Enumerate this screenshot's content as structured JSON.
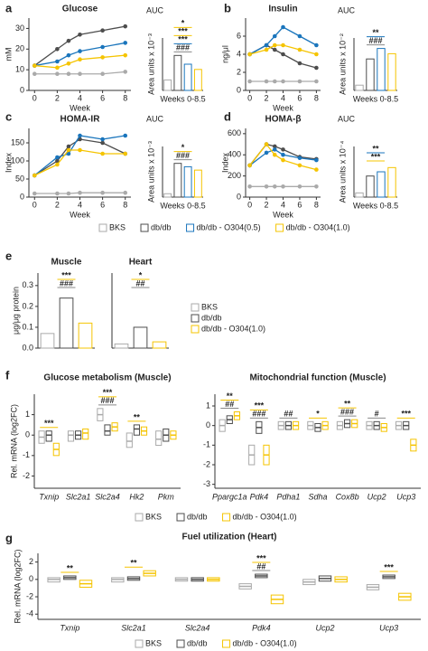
{
  "chart_data": [
    {
      "type": "line",
      "label": "a",
      "title": "Glucose",
      "ylabel": "mM",
      "xlabel": "Week",
      "x": [
        0,
        2,
        3,
        4,
        6,
        8
      ],
      "xlim": [
        -0.5,
        8.5
      ],
      "xticks": [
        0,
        2,
        4,
        6,
        8
      ],
      "ylim": [
        0,
        35
      ],
      "yticks": [
        0,
        10,
        20,
        30
      ],
      "legend": "bottom",
      "series": [
        {
          "name": "BKS",
          "color": "#aaaaaa",
          "values": [
            8,
            8,
            8,
            8,
            8,
            9
          ]
        },
        {
          "name": "db/db",
          "color": "#4d4d4d",
          "values": [
            12,
            20,
            24,
            27,
            29,
            31
          ]
        },
        {
          "name": "db/db - O304(0.5)",
          "color": "#1a75bc",
          "values": [
            12,
            14,
            17,
            19,
            21,
            23
          ]
        },
        {
          "name": "db/db - O304(1.0)",
          "color": "#f5c400",
          "values": [
            12,
            11,
            13,
            15,
            16,
            17
          ]
        }
      ]
    },
    {
      "type": "auc",
      "title": "AUC",
      "ylabel": "Area units x 10⁻³",
      "xlabel": "Weeks 0-8.5",
      "ylim": [
        0,
        0.3
      ],
      "values": [
        0.06,
        0.2,
        0.15,
        0.12
      ],
      "colors": [
        "#aaaaaa",
        "#4d4d4d",
        "#1a75bc",
        "#f5c400"
      ],
      "annotations": [
        {
          "text": "###",
          "color": "#888888"
        },
        {
          "text": "***",
          "color": "#1a75bc"
        },
        {
          "text": "***",
          "color": "#f5c400"
        },
        {
          "text": "*",
          "color": "#f5c400"
        }
      ]
    },
    {
      "type": "line",
      "label": "b",
      "title": "Insulin",
      "ylabel": "ng/μl",
      "xlabel": "Week",
      "x": [
        0,
        2,
        3,
        4,
        6,
        8
      ],
      "xlim": [
        -0.5,
        8.5
      ],
      "xticks": [
        0,
        2,
        4,
        6,
        8
      ],
      "ylim": [
        0,
        8
      ],
      "yticks": [
        0,
        2,
        4,
        6
      ],
      "series": [
        {
          "color": "#aaaaaa",
          "values": [
            1,
            1,
            1,
            1,
            1,
            1
          ]
        },
        {
          "color": "#4d4d4d",
          "values": [
            4,
            5,
            4.5,
            4,
            3,
            2.5
          ]
        },
        {
          "color": "#1a75bc",
          "values": [
            4,
            5,
            6,
            7,
            6,
            5
          ]
        },
        {
          "color": "#f5c400",
          "values": [
            4,
            4.5,
            5,
            5,
            4.5,
            4
          ]
        }
      ]
    },
    {
      "type": "auc",
      "title": "AUC",
      "ylabel": "Area units x 10⁻²",
      "xlabel": "Weeks 0-8.5",
      "ylim": [
        0,
        0.5
      ],
      "values": [
        0.05,
        0.3,
        0.4,
        0.35
      ],
      "colors": [
        "#aaaaaa",
        "#4d4d4d",
        "#1a75bc",
        "#f5c400"
      ],
      "annotations": [
        {
          "text": "###",
          "color": "#888888"
        },
        {
          "text": "**",
          "color": "#1a75bc"
        }
      ]
    },
    {
      "type": "line",
      "label": "c",
      "title": "HOMA-IR",
      "ylabel": "Index",
      "xlabel": "Week",
      "x": [
        0,
        2,
        3,
        4,
        6,
        8
      ],
      "xlim": [
        -0.5,
        8.5
      ],
      "xticks": [
        0,
        2,
        4,
        6,
        8
      ],
      "ylim": [
        0,
        190
      ],
      "yticks": [
        0,
        50,
        100,
        150
      ],
      "series": [
        {
          "color": "#aaaaaa",
          "values": [
            10,
            10,
            10,
            12,
            12,
            12
          ]
        },
        {
          "color": "#4d4d4d",
          "values": [
            60,
            100,
            140,
            160,
            150,
            120
          ]
        },
        {
          "color": "#1a75bc",
          "values": [
            60,
            110,
            120,
            170,
            160,
            170
          ]
        },
        {
          "color": "#f5c400",
          "values": [
            60,
            90,
            130,
            130,
            120,
            120
          ]
        }
      ]
    },
    {
      "type": "auc",
      "title": "AUC",
      "ylabel": "Area units x 10⁻³",
      "xlabel": "Weeks 0-8.5",
      "ylim": [
        0,
        1.5
      ],
      "values": [
        0.1,
        1,
        0.9,
        0.8
      ],
      "colors": [
        "#aaaaaa",
        "#4d4d4d",
        "#1a75bc",
        "#f5c400"
      ],
      "annotations": [
        {
          "text": "###",
          "color": "#888888"
        },
        {
          "text": "*",
          "color": "#f5c400"
        }
      ]
    },
    {
      "type": "line",
      "label": "d",
      "title": "HOMA-β",
      "ylabel": "Index",
      "xlabel": "Week",
      "x": [
        0,
        2,
        3,
        4,
        6,
        8
      ],
      "xlim": [
        -0.5,
        8.5
      ],
      "xticks": [
        0,
        2,
        4,
        6,
        8
      ],
      "ylim": [
        0,
        650
      ],
      "yticks": [
        0,
        200,
        400,
        600
      ],
      "series": [
        {
          "color": "#aaaaaa",
          "values": [
            100,
            100,
            100,
            100,
            100,
            100
          ]
        },
        {
          "color": "#4d4d4d",
          "values": [
            300,
            500,
            480,
            450,
            380,
            360
          ]
        },
        {
          "color": "#1a75bc",
          "values": [
            300,
            420,
            450,
            400,
            370,
            350
          ]
        },
        {
          "color": "#f5c400",
          "values": [
            300,
            500,
            400,
            350,
            300,
            260
          ]
        }
      ]
    },
    {
      "type": "auc",
      "title": "AUC",
      "ylabel": "Area units x 10⁻⁴",
      "xlabel": "Weeks 0-8.5",
      "ylim": [
        0,
        0.6
      ],
      "values": [
        0.05,
        0.25,
        0.3,
        0.35
      ],
      "colors": [
        "#aaaaaa",
        "#4d4d4d",
        "#1a75bc",
        "#f5c400"
      ],
      "annotations": [
        {
          "text": "***",
          "color": "#f5c400"
        },
        {
          "text": "**",
          "color": "#1a75bc"
        }
      ]
    },
    {
      "type": "bar",
      "label": "e",
      "title": "Muscle",
      "ylabel": "μg/μg protein",
      "ylim": [
        0,
        0.36
      ],
      "yticks": [
        {
          "value": 0,
          "label": "0.0"
        },
        0.1,
        0.2,
        0.3
      ],
      "values": [
        0.07,
        0.24,
        0.12
      ],
      "colors": [
        "#aaaaaa",
        "#4d4d4d",
        "#f5c400"
      ],
      "legend": [
        "BKS",
        "db/db",
        "db/db - O304(1.0)"
      ],
      "annotations": [
        {
          "text": "###",
          "color": "#888888"
        },
        {
          "text": "***",
          "color": "#f5c400"
        }
      ]
    },
    {
      "type": "bar",
      "title": "Heart",
      "ylim": [
        0,
        0.36
      ],
      "values": [
        0.02,
        0.1,
        0.03
      ],
      "colors": [
        "#aaaaaa",
        "#4d4d4d",
        "#f5c400"
      ],
      "annotations": [
        {
          "text": "##",
          "color": "#888888"
        },
        {
          "text": "*",
          "color": "#f5c400"
        }
      ]
    },
    {
      "type": "box",
      "label": "f",
      "title": "Glucose metabolism (Muscle)",
      "ylabel": "Rel. mRNA (log2FC)",
      "categories": [
        "Txnip",
        "Slc2a1",
        "Slc2a4",
        "Hk2",
        "Pkm"
      ],
      "ylim": [
        -2.6,
        2
      ],
      "yticks": [
        -2,
        -1,
        0,
        1
      ],
      "legend": "bottom",
      "series": [
        {
          "name": "BKS",
          "color": "#aaaaaa",
          "values": [
            -0.1,
            0,
            1,
            -0.3,
            -0.2
          ],
          "q1": [
            -0.4,
            -0.3,
            0.7,
            -0.6,
            -0.5
          ],
          "q3": [
            0.2,
            0.2,
            1.3,
            0.1,
            0.2
          ]
        },
        {
          "name": "db/db",
          "color": "#4d4d4d",
          "values": [
            0,
            0,
            0.2,
            0.3,
            0
          ],
          "q1": [
            -0.3,
            -0.2,
            0,
            0,
            -0.3
          ],
          "q3": [
            0.2,
            0.2,
            0.5,
            0.5,
            0.3
          ]
        },
        {
          "name": "db/db - O304(1.0)",
          "color": "#f5c400",
          "values": [
            -0.7,
            0.1,
            0.4,
            0.2,
            0
          ],
          "q1": [
            -1,
            -0.2,
            0.2,
            0,
            -0.2
          ],
          "q3": [
            -0.4,
            0.3,
            0.6,
            0.4,
            0.2
          ]
        }
      ],
      "annotations": [
        [
          {
            "text": "***",
            "color": "#f5c400"
          }
        ],
        [],
        [
          {
            "text": "###",
            "color": "#888888"
          },
          {
            "text": "***",
            "color": "#f5c400"
          }
        ],
        [
          {
            "text": "**",
            "color": "#f5c400"
          }
        ],
        []
      ]
    },
    {
      "type": "box",
      "title": "Mitochondrial function (Muscle)",
      "categories": [
        "Ppargc1a",
        "Pdk4",
        "Pdha1",
        "Sdha",
        "Cox8b",
        "Ucp2",
        "Ucp3"
      ],
      "ylim": [
        -3.2,
        1.6
      ],
      "yticks": [
        -3,
        -2,
        -1,
        0,
        1
      ],
      "series": [
        {
          "color": "#aaaaaa",
          "values": [
            0,
            -1.5,
            0,
            0,
            0,
            0,
            0
          ],
          "q1": [
            -0.3,
            -2,
            -0.2,
            -0.2,
            -0.2,
            -0.2,
            -0.2
          ],
          "q3": [
            0.3,
            -1,
            0.2,
            0.2,
            0.2,
            0.2,
            0.2
          ]
        },
        {
          "color": "#4d4d4d",
          "values": [
            0.3,
            -0.1,
            0,
            -0.1,
            0.1,
            0,
            0
          ],
          "q1": [
            0.1,
            -0.4,
            -0.2,
            -0.3,
            -0.1,
            -0.2,
            -0.2
          ],
          "q3": [
            0.5,
            0.2,
            0.2,
            0.1,
            0.3,
            0.2,
            0.2
          ]
        },
        {
          "color": "#f5c400",
          "values": [
            0.5,
            -1.5,
            0,
            0,
            0.1,
            -0.1,
            -1
          ],
          "q1": [
            0.3,
            -2,
            -0.2,
            -0.2,
            -0.1,
            -0.3,
            -1.3
          ],
          "q3": [
            0.7,
            -1,
            0.2,
            0.2,
            0.3,
            0.1,
            -0.7
          ]
        }
      ],
      "annotations": [
        [
          {
            "text": "##",
            "color": "#888888"
          },
          {
            "text": "**",
            "color": "#f5c400"
          }
        ],
        [
          {
            "text": "###",
            "color": "#888888"
          },
          {
            "text": "***",
            "color": "#f5c400"
          }
        ],
        [
          {
            "text": "##",
            "color": "#888888"
          }
        ],
        [
          {
            "text": "*",
            "color": "#f5c400"
          }
        ],
        [
          {
            "text": "###",
            "color": "#888888"
          },
          {
            "text": "**",
            "color": "#f5c400"
          }
        ],
        [
          {
            "text": "#",
            "color": "#888888"
          }
        ],
        [
          {
            "text": "***",
            "color": "#f5c400"
          }
        ]
      ]
    },
    {
      "type": "box",
      "label": "g",
      "title": "Fuel utilization (Heart)",
      "ylabel": "Rel. mRNA (log2FC)",
      "categories": [
        "Txnip",
        "Slc2a1",
        "Slc2a4",
        "Pdk4",
        "Ucp2",
        "Ucp3"
      ],
      "ylim": [
        -4.6,
        3
      ],
      "yticks": [
        -4,
        -2,
        0,
        2
      ],
      "legend": "bottom",
      "series": [
        {
          "name": "BKS",
          "color": "#aaaaaa",
          "values": [
            0,
            0,
            0,
            -0.8,
            -0.3,
            -0.9
          ],
          "q1": [
            -0.3,
            -0.3,
            -0.2,
            -1.1,
            -0.6,
            -1.2
          ],
          "q3": [
            0.2,
            0.2,
            0.2,
            -0.5,
            0,
            -0.6
          ]
        },
        {
          "name": "db/db",
          "color": "#4d4d4d",
          "values": [
            0.2,
            0.1,
            0,
            0.4,
            0.1,
            0.3
          ],
          "q1": [
            0,
            -0.1,
            -0.2,
            0.2,
            -0.2,
            0.1
          ],
          "q3": [
            0.4,
            0.3,
            0.2,
            0.6,
            0.4,
            0.5
          ]
        },
        {
          "name": "db/db - O304(1.0)",
          "color": "#f5c400",
          "values": [
            -0.5,
            0.7,
            0,
            -2.3,
            0,
            -2
          ],
          "q1": [
            -0.9,
            0.4,
            -0.2,
            -2.8,
            -0.3,
            -2.4
          ],
          "q3": [
            -0.1,
            1,
            0.2,
            -1.8,
            0.3,
            -1.6
          ]
        }
      ],
      "annotations": [
        [
          {
            "text": "**",
            "color": "#f5c400"
          }
        ],
        [
          {
            "text": "**",
            "color": "#f5c400"
          }
        ],
        [],
        [
          {
            "text": "##",
            "color": "#888888"
          },
          {
            "text": "***",
            "color": "#f5c400"
          }
        ],
        [],
        [
          {
            "text": "***",
            "color": "#f5c400"
          }
        ]
      ]
    }
  ]
}
